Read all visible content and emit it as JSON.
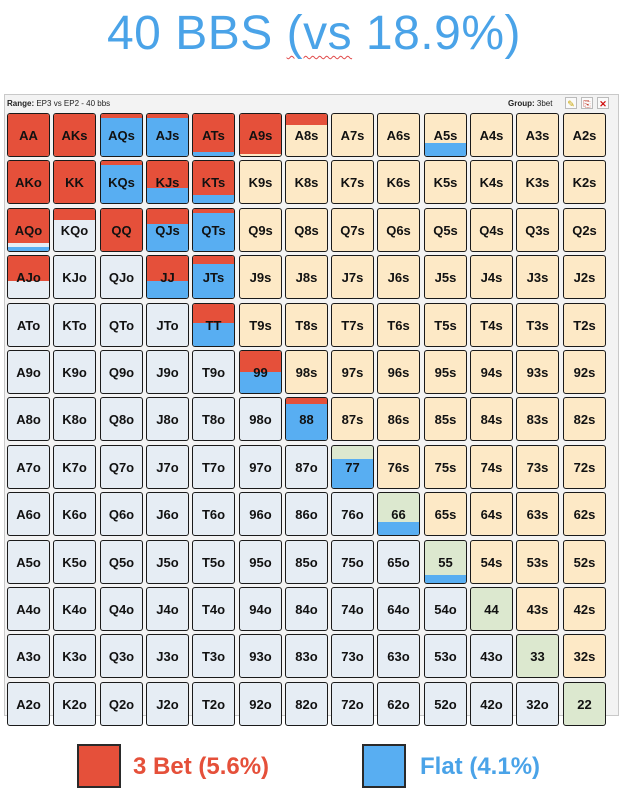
{
  "title_prefix": "40 BBS ",
  "title_vs": "(vs",
  "title_suffix": " 18.9%)",
  "header": {
    "range_label": "Range:",
    "range_value": " EP3 vs EP2 - 40 bbs",
    "group_label": "Group:",
    "group_value": " 3bet",
    "buttons": [
      "edit-icon",
      "copy-icon",
      "close-icon"
    ]
  },
  "colors": {
    "threebet": "#e5503a",
    "flat": "#58aef2",
    "suited": "#fde9c6",
    "pair": "#dce8cf",
    "offsuit": "#e6edf4"
  },
  "legend": [
    {
      "label": "3 Bet (5.6%)",
      "color": "#e5503a",
      "text_color": "#e5503a"
    },
    {
      "label": "Flat (4.1%)",
      "color": "#58aef2",
      "text_color": "#4aa3e8"
    }
  ],
  "matrix": [
    [
      "AA",
      "AKs",
      "AQs",
      "AJs",
      "ATs",
      "A9s",
      "A8s",
      "A7s",
      "A6s",
      "A5s",
      "A4s",
      "A3s",
      "A2s"
    ],
    [
      "AKo",
      "KK",
      "KQs",
      "KJs",
      "KTs",
      "K9s",
      "K8s",
      "K7s",
      "K6s",
      "K5s",
      "K4s",
      "K3s",
      "K2s"
    ],
    [
      "AQo",
      "KQo",
      "QQ",
      "QJs",
      "QTs",
      "Q9s",
      "Q8s",
      "Q7s",
      "Q6s",
      "Q5s",
      "Q4s",
      "Q3s",
      "Q2s"
    ],
    [
      "AJo",
      "KJo",
      "QJo",
      "JJ",
      "JTs",
      "J9s",
      "J8s",
      "J7s",
      "J6s",
      "J5s",
      "J4s",
      "J3s",
      "J2s"
    ],
    [
      "ATo",
      "KTo",
      "QTo",
      "JTo",
      "TT",
      "T9s",
      "T8s",
      "T7s",
      "T6s",
      "T5s",
      "T4s",
      "T3s",
      "T2s"
    ],
    [
      "A9o",
      "K9o",
      "Q9o",
      "J9o",
      "T9o",
      "99",
      "98s",
      "97s",
      "96s",
      "95s",
      "94s",
      "93s",
      "92s"
    ],
    [
      "A8o",
      "K8o",
      "Q8o",
      "J8o",
      "T8o",
      "98o",
      "88",
      "87s",
      "86s",
      "85s",
      "84s",
      "83s",
      "82s"
    ],
    [
      "A7o",
      "K7o",
      "Q7o",
      "J7o",
      "T7o",
      "97o",
      "87o",
      "77",
      "76s",
      "75s",
      "74s",
      "73s",
      "72s"
    ],
    [
      "A6o",
      "K6o",
      "Q6o",
      "J6o",
      "T6o",
      "96o",
      "86o",
      "76o",
      "66",
      "65s",
      "64s",
      "63s",
      "62s"
    ],
    [
      "A5o",
      "K5o",
      "Q5o",
      "J5o",
      "T5o",
      "95o",
      "85o",
      "75o",
      "65o",
      "55",
      "54s",
      "53s",
      "52s"
    ],
    [
      "A4o",
      "K4o",
      "Q4o",
      "J4o",
      "T4o",
      "94o",
      "84o",
      "74o",
      "64o",
      "54o",
      "44",
      "43s",
      "42s"
    ],
    [
      "A3o",
      "K3o",
      "Q3o",
      "J3o",
      "T3o",
      "93o",
      "83o",
      "73o",
      "63o",
      "53o",
      "43o",
      "33",
      "32s"
    ],
    [
      "A2o",
      "K2o",
      "Q2o",
      "J2o",
      "T2o",
      "92o",
      "82o",
      "72o",
      "62o",
      "52o",
      "42o",
      "32o",
      "22"
    ]
  ],
  "frequencies": {
    "AA": {
      "threebet": 1.0,
      "flat": 0.0
    },
    "AKs": {
      "threebet": 1.0,
      "flat": 0.0
    },
    "AQs": {
      "threebet": 0.1,
      "flat": 0.9
    },
    "AJs": {
      "threebet": 0.1,
      "flat": 0.9
    },
    "ATs": {
      "threebet": 0.9,
      "flat": 0.1
    },
    "A9s": {
      "threebet": 0.95,
      "flat": 0.0
    },
    "A8s": {
      "threebet": 0.25,
      "flat": 0.0
    },
    "A5s": {
      "threebet": 0.0,
      "flat": 0.3
    },
    "AKo": {
      "threebet": 1.0,
      "flat": 0.0
    },
    "KK": {
      "threebet": 1.0,
      "flat": 0.0
    },
    "KQs": {
      "threebet": 0.1,
      "flat": 0.9
    },
    "KJs": {
      "threebet": 0.65,
      "flat": 0.35
    },
    "KTs": {
      "threebet": 0.8,
      "flat": 0.2
    },
    "AQo": {
      "threebet": 0.8,
      "flat": 0.1
    },
    "KQo": {
      "threebet": 0.25,
      "flat": 0.0
    },
    "QQ": {
      "threebet": 1.0,
      "flat": 0.0
    },
    "QJs": {
      "threebet": 0.35,
      "flat": 0.65
    },
    "QTs": {
      "threebet": 0.1,
      "flat": 0.9
    },
    "AJo": {
      "threebet": 0.6,
      "flat": 0.0
    },
    "JJ": {
      "threebet": 0.6,
      "flat": 0.4
    },
    "JTs": {
      "threebet": 0.2,
      "flat": 0.8
    },
    "TT": {
      "threebet": 0.45,
      "flat": 0.55
    },
    "99": {
      "threebet": 0.5,
      "flat": 0.5
    },
    "88": {
      "threebet": 0.15,
      "flat": 0.85
    },
    "77": {
      "threebet": 0.0,
      "flat": 0.7
    },
    "66": {
      "threebet": 0.0,
      "flat": 0.3
    },
    "55": {
      "threebet": 0.0,
      "flat": 0.2
    }
  }
}
